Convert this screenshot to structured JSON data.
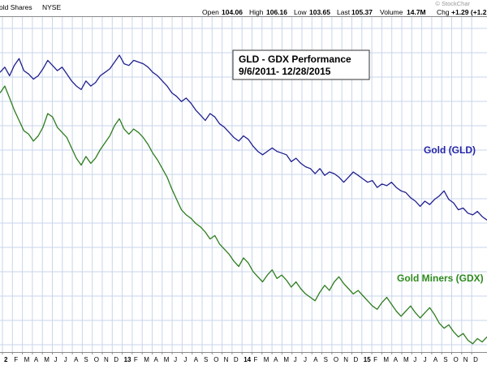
{
  "header": {
    "security": "old Shares",
    "exchange": "NYSE",
    "open_label": "Open",
    "open": "104.06",
    "high_label": "High",
    "high": "106.16",
    "low_label": "Low",
    "low": "103.65",
    "last_label": "Last",
    "last": "105.37",
    "volume_label": "Volume",
    "volume": "14.7M",
    "chg_label": "Chg",
    "chg": "+1.29 (+1.2",
    "watermark": "© StockChar"
  },
  "annotation": {
    "line1": "GLD - GDX Performance",
    "line2": "9/6/2011- 12/28/2015"
  },
  "colors": {
    "background": "#ffffff",
    "grid": "#c8d6ec",
    "gld": "#1f1f8f",
    "gdx": "#2e7d1e",
    "gld_label": "#2525a8",
    "gdx_label": "#2e8a1e"
  },
  "chart_data": {
    "type": "line",
    "x_start": "2012-01-01",
    "x_end": "2015-12-31",
    "x_tick_labels": [
      "2",
      "F",
      "M",
      "A",
      "M",
      "J",
      "J",
      "A",
      "S",
      "O",
      "N",
      "D",
      "13",
      "F",
      "M",
      "A",
      "M",
      "J",
      "J",
      "A",
      "S",
      "O",
      "N",
      "D",
      "14",
      "F",
      "M",
      "A",
      "M",
      "J",
      "J",
      "A",
      "S",
      "O",
      "N",
      "D",
      "15",
      "F",
      "M",
      "A",
      "M",
      "J",
      "J",
      "A",
      "S",
      "O",
      "N",
      "D"
    ],
    "year_tick_labels": [
      "2",
      "13",
      "14",
      "15"
    ],
    "grid": true,
    "legend": "inline labels",
    "series": [
      {
        "name": "Gold (GLD)",
        "values": [
          94,
          97,
          92,
          98,
          102,
          95,
          93,
          90,
          92,
          96,
          101,
          98,
          95,
          97,
          93,
          89,
          86,
          84,
          89,
          86,
          88,
          92,
          94,
          96,
          100,
          104,
          99,
          98,
          101,
          100,
          99,
          97,
          94,
          92,
          89,
          86,
          82,
          80,
          77,
          79,
          76,
          72,
          69,
          66,
          70,
          68,
          64,
          62,
          59,
          56,
          54,
          57,
          55,
          51,
          48,
          46,
          48,
          50,
          48,
          47,
          46,
          42,
          44,
          41,
          39,
          38,
          35,
          38,
          34,
          36,
          35,
          33,
          30,
          33,
          36,
          34,
          32,
          30,
          31,
          27,
          29,
          28,
          30,
          27,
          25,
          24,
          21,
          19,
          16,
          19,
          17,
          20,
          22,
          25,
          20,
          18,
          14,
          15,
          12,
          11,
          13,
          10,
          8
        ]
      },
      {
        "name": "Gold Miners (GDX)",
        "values": [
          82,
          86,
          79,
          72,
          66,
          60,
          58,
          54,
          57,
          62,
          70,
          68,
          62,
          59,
          56,
          50,
          44,
          40,
          45,
          41,
          44,
          49,
          53,
          57,
          63,
          67,
          61,
          58,
          61,
          59,
          56,
          52,
          47,
          43,
          38,
          33,
          26,
          20,
          14,
          11,
          9,
          6,
          4,
          1,
          -3,
          -1,
          -6,
          -9,
          -12,
          -16,
          -19,
          -14,
          -17,
          -22,
          -25,
          -28,
          -24,
          -21,
          -26,
          -24,
          -27,
          -31,
          -28,
          -32,
          -35,
          -37,
          -39,
          -34,
          -30,
          -33,
          -28,
          -25,
          -29,
          -32,
          -35,
          -33,
          -36,
          -39,
          -42,
          -44,
          -40,
          -37,
          -41,
          -45,
          -48,
          -45,
          -42,
          -46,
          -49,
          -46,
          -43,
          -47,
          -52,
          -55,
          -53,
          -57,
          -60,
          -58,
          -62,
          -64,
          -61,
          -63,
          -60
        ]
      }
    ]
  }
}
